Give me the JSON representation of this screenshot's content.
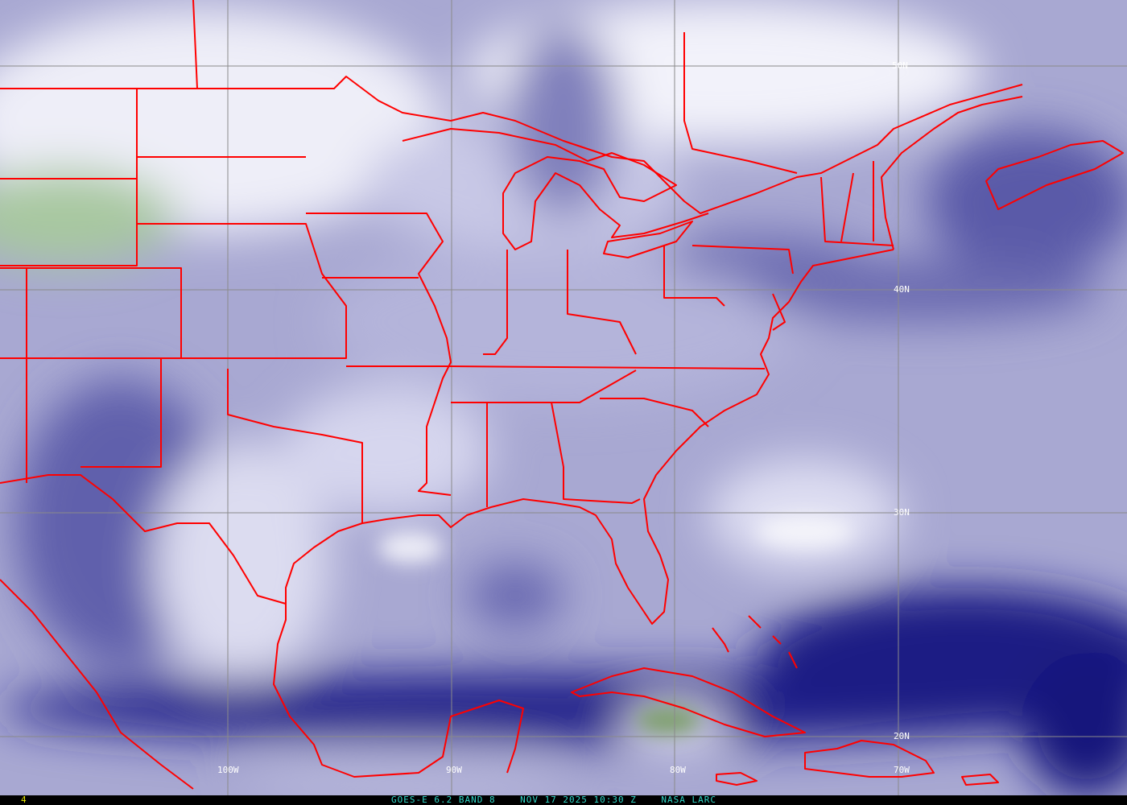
{
  "image": {
    "satellite": "GOES-E",
    "channel": "6.2",
    "band": "BAND 8",
    "date": "NOV 17 2025",
    "time": "10:30 Z",
    "source": "NASA LARC",
    "caption": "GOES-E 6.2 BAND 8    NOV 17 2025 10:30 Z    NASA LARC",
    "frame_number": "4"
  },
  "grid": {
    "latitude_labels": [
      "50N",
      "40N",
      "30N",
      "20N"
    ],
    "longitude_labels": [
      "100W",
      "90W",
      "80W",
      "70W"
    ]
  },
  "colors": {
    "boundaries": "#ff0000",
    "grid": "#8a8a8a",
    "caption_text": "#30d8c8",
    "frame_number_text": "#e8e800",
    "moist": "#ffffff",
    "dry": "#000080"
  }
}
